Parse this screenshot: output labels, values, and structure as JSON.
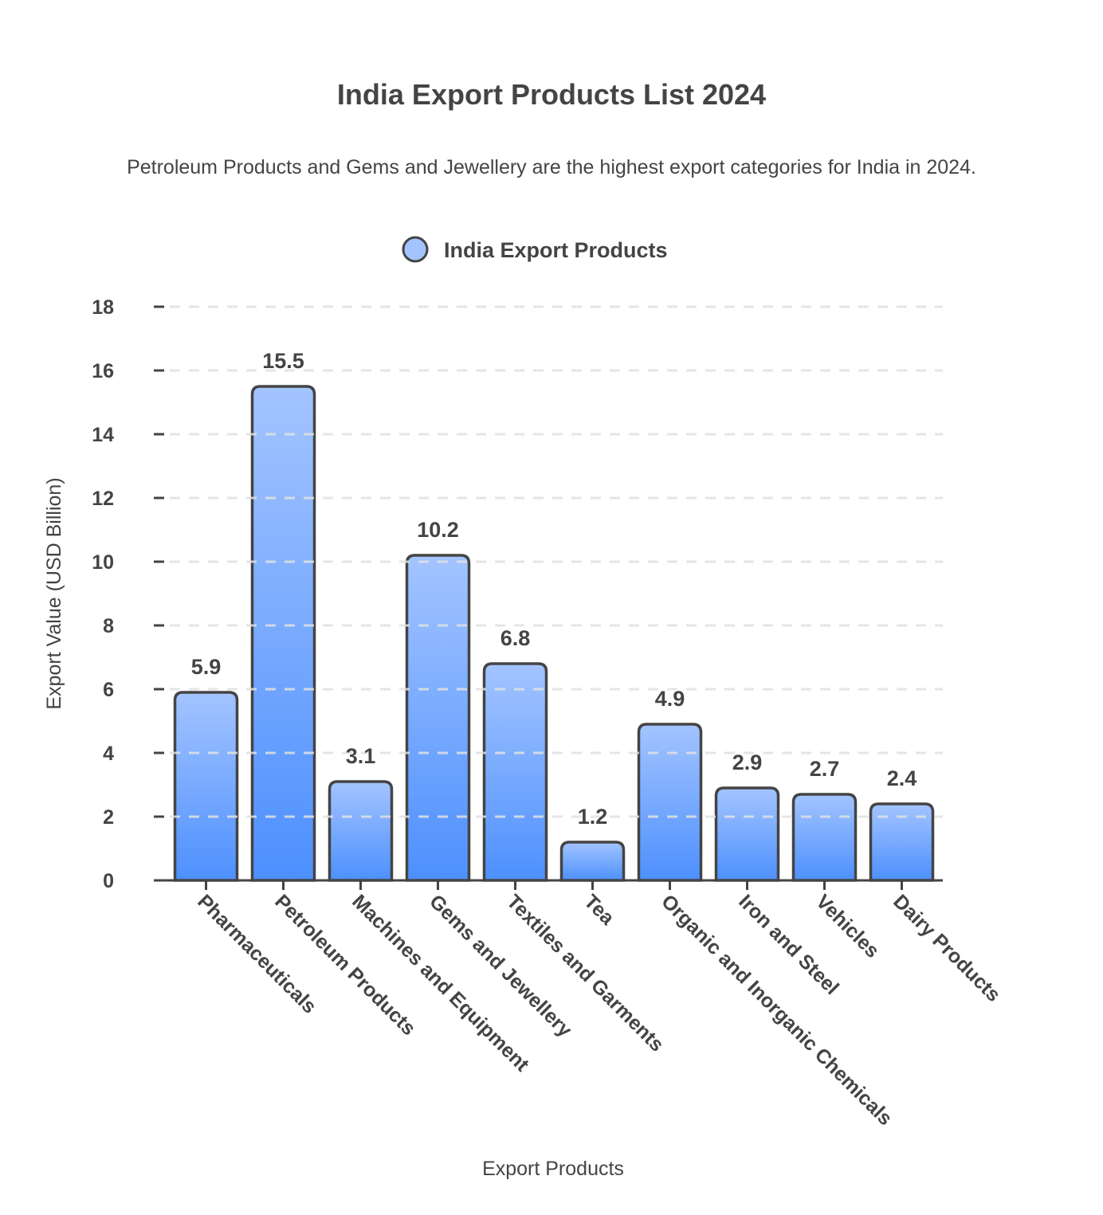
{
  "chart_data": {
    "type": "bar",
    "title": "India Export Products List 2024",
    "subtitle": "Petroleum Products and Gems and Jewellery are the highest export categories for India in 2024.",
    "xlabel": "Export Products",
    "ylabel": "Export Value (USD Billion)",
    "ylim": [
      0,
      18
    ],
    "yticks": [
      0,
      2,
      4,
      6,
      8,
      10,
      12,
      14,
      16,
      18
    ],
    "grid": true,
    "legend_position": "top-center",
    "categories": [
      "Pharmaceuticals",
      "Petroleum Products",
      "Machines and Equipment",
      "Gems and Jewellery",
      "Textiles and Garments",
      "Tea",
      "Organic and Inorganic Chemicals",
      "Iron and Steel",
      "Vehicles",
      "Dairy Products"
    ],
    "series": [
      {
        "name": "India Export Products",
        "values": [
          5.9,
          15.5,
          3.1,
          10.2,
          6.8,
          1.2,
          4.9,
          2.9,
          2.7,
          2.4
        ]
      }
    ],
    "colors": {
      "bar_top": "#a3c4ff",
      "bar_bottom": "#4d90fe",
      "outline": "#444444",
      "grid": "#e0e0e0"
    }
  }
}
